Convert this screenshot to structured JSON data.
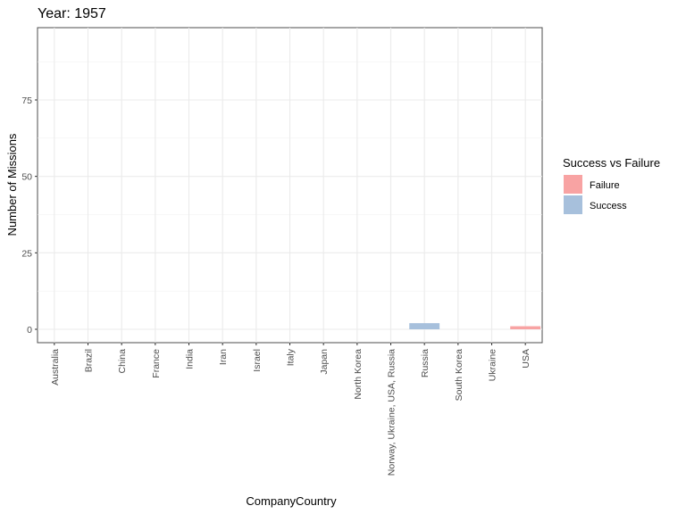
{
  "chart_data": {
    "type": "bar",
    "title": "Year: 1957",
    "xlabel": "CompanyCountry",
    "ylabel": "Number of Missions",
    "ylim": [
      0,
      100
    ],
    "yticks": [
      0,
      25,
      50,
      75
    ],
    "grid": true,
    "categories": [
      "Australia",
      "Brazil",
      "China",
      "France",
      "India",
      "Iran",
      "Israel",
      "Italy",
      "Japan",
      "North Korea",
      "Norway, Ukraine, USA, Russia",
      "Russia",
      "South Korea",
      "Ukraine",
      "USA"
    ],
    "series": [
      {
        "name": "Failure",
        "color": "#f8a3a3",
        "values": [
          0,
          0,
          0,
          0,
          0,
          0,
          0,
          0,
          0,
          0,
          0,
          0,
          0,
          0,
          1
        ]
      },
      {
        "name": "Success",
        "color": "#a7c0dc",
        "values": [
          0,
          0,
          0,
          0,
          0,
          0,
          0,
          0,
          0,
          0,
          0,
          2,
          0,
          0,
          0
        ]
      }
    ],
    "legend": {
      "title": "Success vs Failure",
      "position": "right"
    }
  }
}
